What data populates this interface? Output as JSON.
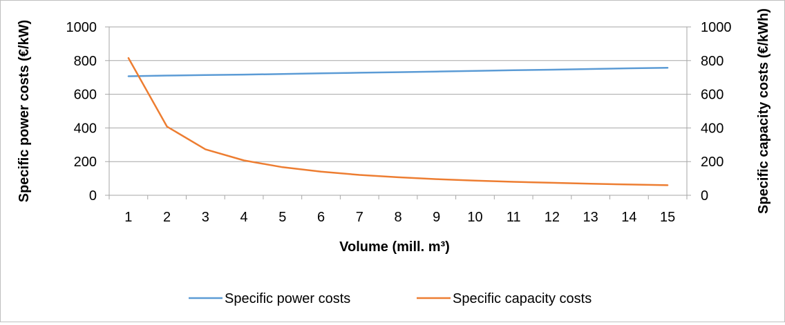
{
  "chart_data": {
    "type": "line",
    "title": "",
    "xlabel": "Volume (mill. m³)",
    "ylabel_left": "Specific power costs (€/kW)",
    "ylabel_right": "Specific capacity costs (€/kWh)",
    "categories": [
      "1",
      "2",
      "3",
      "4",
      "5",
      "6",
      "7",
      "8",
      "9",
      "10",
      "11",
      "12",
      "13",
      "14",
      "15"
    ],
    "ylim_left": [
      0,
      1000
    ],
    "ylim_right": [
      0,
      1000
    ],
    "yticks_left": [
      "0",
      "200",
      "400",
      "600",
      "800",
      "1000"
    ],
    "yticks_right": [
      "0",
      "200",
      "400",
      "600",
      "800",
      "1000"
    ],
    "grid": true,
    "legend_position": "bottom",
    "series": [
      {
        "name": "Specific power costs",
        "axis": "left",
        "color": "#5B9BD5",
        "values": [
          707,
          711,
          714,
          717,
          720,
          724,
          728,
          731,
          735,
          739,
          743,
          746,
          750,
          754,
          757
        ]
      },
      {
        "name": "Specific capacity costs",
        "axis": "right",
        "color": "#ED7D31",
        "values": [
          815,
          408,
          273,
          207,
          167,
          140,
          121,
          107,
          96,
          87,
          80,
          74,
          69,
          64,
          60
        ]
      }
    ]
  }
}
